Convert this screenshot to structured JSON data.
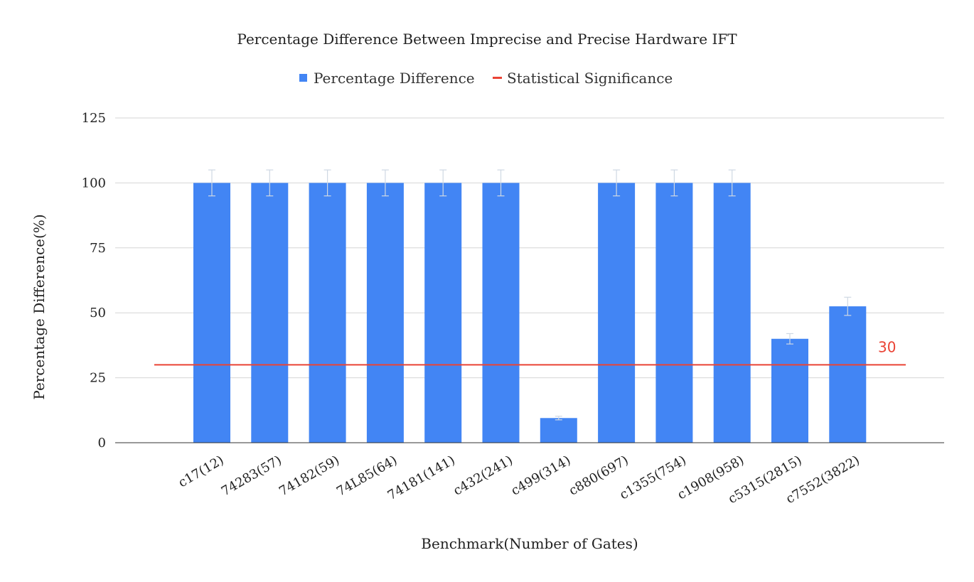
{
  "chart_data": {
    "type": "bar",
    "title": "Percentage Difference Between Imprecise and Precise Hardware IFT",
    "xlabel": "Benchmark(Number of Gates)",
    "ylabel": "Percentage Difference(%)",
    "ylim": [
      0,
      125
    ],
    "yticks": [
      "0",
      "25",
      "50",
      "75",
      "100",
      "125"
    ],
    "grid": true,
    "legend_position": "top",
    "categories": [
      "c17(12)",
      "74283(57)",
      "74182(59)",
      "74L85(64)",
      "74181(141)",
      "c432(241)",
      "c499(314)",
      "c880(697)",
      "c1355(754)",
      "c1908(958)",
      "c5315(2815)",
      "c7552(3822)"
    ],
    "series": [
      {
        "name": "Percentage Difference",
        "color": "#4285f4",
        "values": [
          100,
          100,
          100,
          100,
          100,
          100,
          9.5,
          100,
          100,
          100,
          40,
          52.5
        ],
        "error": [
          5,
          5,
          5,
          5,
          5,
          5,
          0.7,
          5,
          5,
          5,
          2,
          3.5
        ]
      }
    ],
    "reference_line": {
      "name": "Statistical Significance",
      "value": 30,
      "label": "30",
      "color": "#ea4335"
    }
  }
}
